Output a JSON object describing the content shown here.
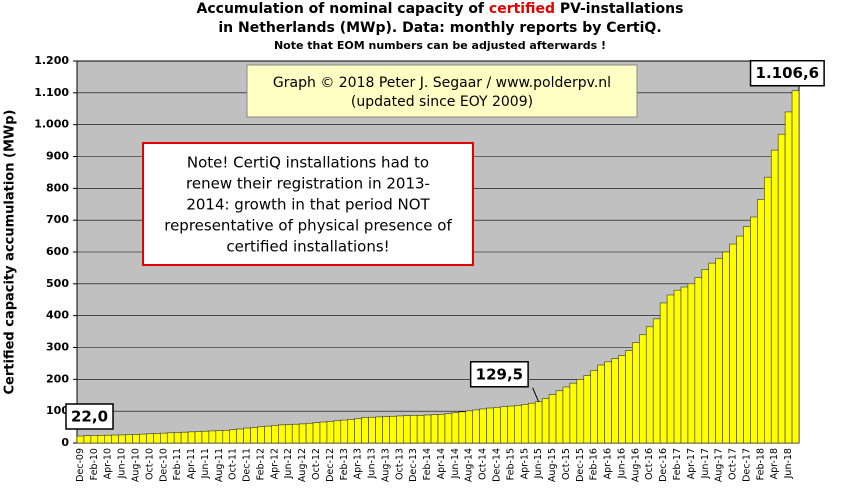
{
  "chart_data": {
    "type": "bar",
    "title": [
      "Accumulation  of nominal  capacity  of ",
      "certified",
      " PV-installations"
    ],
    "title_line2": "in Netherlands (MWp). Data: monthly  reports by CertiQ.",
    "subtitle": "Note that EOM numbers can be adjusted afterwards  !",
    "y_label": "Certified capacity accumulation (MWp)",
    "annotations": [
      "Graph © 2018 Peter J. Segaar / www.polderpv.nl",
      "(updated since EOY 2009)"
    ],
    "note": [
      "Note! CertiQ installations had to",
      "renew their registration in 2013-",
      "2014:  growth in that period NOT",
      "representative of physical presence of",
      "certified installations!"
    ],
    "categories": [
      "Dec-09",
      null,
      "Feb-10",
      null,
      "Apr-10",
      null,
      "Jun-10",
      null,
      "Aug-10",
      null,
      "Oct-10",
      null,
      "Dec-10",
      null,
      "Feb-11",
      null,
      "Apr-11",
      null,
      "Jun-11",
      null,
      "Aug-11",
      null,
      "Oct-11",
      null,
      "Dec-11",
      null,
      "Feb-12",
      null,
      "Apr-12",
      null,
      "Jun-12",
      null,
      "Aug-12",
      null,
      "Oct-12",
      null,
      "Dec-12",
      null,
      "Feb-13",
      null,
      "Apr-13",
      null,
      "Jun-13",
      null,
      "Aug-13",
      null,
      "Oct-13",
      null,
      "Dec-13",
      null,
      "Feb-14",
      null,
      "Apr-14",
      null,
      "Jun-14",
      null,
      "Aug-14",
      null,
      "Oct-14",
      null,
      "Dec-14",
      null,
      "Feb-15",
      null,
      "Apr-15",
      null,
      "Jun-15",
      null,
      "Aug-15",
      null,
      "Oct-15",
      null,
      "Dec-15",
      null,
      "Feb-16",
      null,
      "Apr-16",
      null,
      "Jun-16",
      null,
      "Aug-16",
      null,
      "Oct-16",
      null,
      "Dec-16",
      null,
      "Feb-17",
      null,
      "Apr-17",
      null,
      "Jun-17",
      null,
      "Aug-17",
      null,
      "Oct-17",
      null,
      "Dec-17",
      null,
      "Feb-18",
      null,
      "Apr-18",
      null,
      "Jun-18",
      null
    ],
    "values": [
      22,
      23,
      23.5,
      24,
      24.5,
      25,
      25.5,
      26,
      27,
      28,
      29,
      30,
      31,
      32,
      33,
      34,
      35,
      36,
      37,
      38,
      39,
      40,
      42,
      44,
      47,
      49,
      51,
      53,
      55,
      57,
      58,
      59,
      60,
      62,
      64,
      66,
      68,
      70,
      72,
      74,
      77,
      80,
      81,
      82,
      83,
      84,
      85,
      86,
      87,
      87,
      88,
      89,
      90,
      92,
      95,
      98,
      101,
      104,
      107,
      110,
      112,
      114,
      116,
      118,
      121,
      125,
      129.5,
      140,
      152,
      164,
      176,
      188,
      200,
      212,
      228,
      245,
      255,
      265,
      275,
      290,
      315,
      340,
      365,
      390,
      440,
      465,
      480,
      490,
      500,
      520,
      545,
      565,
      580,
      600,
      625,
      650,
      680,
      710,
      765,
      835,
      920,
      970,
      1040,
      1106.6
    ],
    "value_labels": [
      "22,0",
      null,
      null,
      null,
      null,
      null,
      null,
      null,
      null,
      null,
      null,
      null,
      null,
      null,
      null,
      null,
      null,
      null,
      null,
      null,
      null,
      null,
      null,
      null,
      null,
      null,
      null,
      null,
      null,
      null,
      null,
      null,
      null,
      null,
      null,
      null,
      null,
      null,
      null,
      null,
      null,
      null,
      null,
      null,
      null,
      null,
      null,
      null,
      null,
      null,
      null,
      null,
      null,
      null,
      null,
      null,
      null,
      null,
      null,
      null,
      null,
      null,
      null,
      null,
      null,
      null,
      "129,5",
      null,
      null,
      null,
      null,
      null,
      null,
      null,
      null,
      null,
      null,
      null,
      null,
      null,
      null,
      null,
      null,
      null,
      null,
      null,
      null,
      null,
      null,
      null,
      null,
      null,
      null,
      null,
      null,
      null,
      null,
      null,
      null,
      null,
      null,
      null,
      null,
      "1.106,6"
    ],
    "color": "#ffff00",
    "ylim": [
      0,
      1200
    ],
    "yticks": [
      0,
      100,
      200,
      300,
      400,
      500,
      600,
      700,
      800,
      900,
      {
        "value": 1000,
        "label": "1.000"
      },
      {
        "value": 1100,
        "label": "1.100"
      },
      {
        "value": 1200,
        "label": "1.200"
      }
    ],
    "grid": true
  }
}
